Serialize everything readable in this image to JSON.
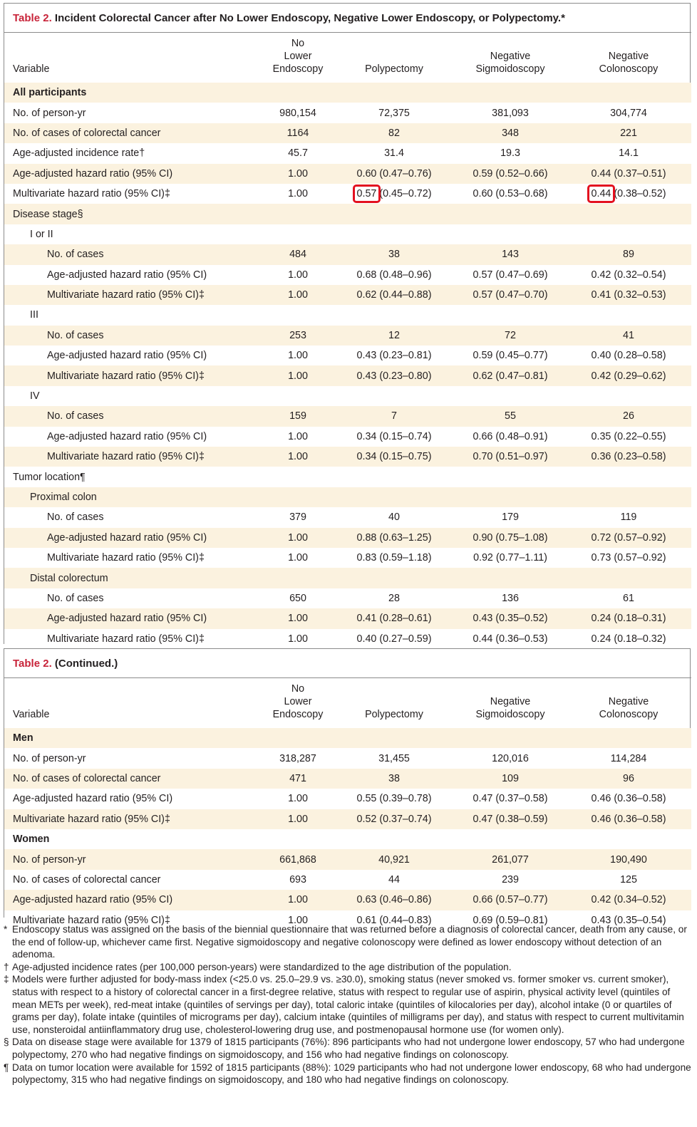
{
  "table1": {
    "label": "Table 2.",
    "title": "Incident Colorectal Cancer after No Lower Endoscopy, Negative Lower Endoscopy, or Polypectomy.*",
    "headers": [
      "Variable",
      "No Lower Endoscopy",
      "Polypectomy",
      "Negative Sigmoidoscopy",
      "Negative Colonoscopy"
    ],
    "rows": [
      {
        "kind": "sec",
        "label": "All participants",
        "cells": [
          "",
          "",
          "",
          ""
        ]
      },
      {
        "kind": "l0",
        "label": "No. of person-yr",
        "cells": [
          "980,154",
          "72,375",
          "381,093",
          "304,774"
        ]
      },
      {
        "kind": "l0",
        "label": "No. of cases of colorectal cancer",
        "cells": [
          "1164",
          "82",
          "348",
          "221"
        ]
      },
      {
        "kind": "l0",
        "label": "Age-adjusted incidence rate†",
        "cells": [
          "45.7",
          "31.4",
          "19.3",
          "14.1"
        ]
      },
      {
        "kind": "l0",
        "label": "Age-adjusted hazard ratio (95% CI)",
        "cells": [
          "1.00",
          "0.60 (0.47–0.76)",
          "0.59 (0.52–0.66)",
          "0.44 (0.37–0.51)"
        ]
      },
      {
        "kind": "hl",
        "label": "Multivariate hazard ratio (95% CI)‡",
        "c1": "1.00",
        "c2a": "0.57",
        "c2b": " (0.45–0.72)",
        "c3": "0.60 (0.53–0.68)",
        "c4a": "0.44",
        "c4b": " (0.38–0.52)"
      },
      {
        "kind": "l0",
        "label": "Disease stage§",
        "cells": [
          "",
          "",
          "",
          ""
        ]
      },
      {
        "kind": "l1",
        "label": "I or II",
        "cells": [
          "",
          "",
          "",
          ""
        ]
      },
      {
        "kind": "l2",
        "label": "No. of cases",
        "cells": [
          "484",
          "38",
          "143",
          "89"
        ]
      },
      {
        "kind": "l2",
        "label": "Age-adjusted hazard ratio (95% CI)",
        "cells": [
          "1.00",
          "0.68 (0.48–0.96)",
          "0.57 (0.47–0.69)",
          "0.42 (0.32–0.54)"
        ]
      },
      {
        "kind": "l2",
        "label": "Multivariate hazard ratio (95% CI)‡",
        "cells": [
          "1.00",
          "0.62 (0.44–0.88)",
          "0.57 (0.47–0.70)",
          "0.41 (0.32–0.53)"
        ]
      },
      {
        "kind": "l1",
        "label": "III",
        "cells": [
          "",
          "",
          "",
          ""
        ]
      },
      {
        "kind": "l2",
        "label": "No. of cases",
        "cells": [
          "253",
          "12",
          "72",
          "41"
        ]
      },
      {
        "kind": "l2",
        "label": "Age-adjusted hazard ratio (95% CI)",
        "cells": [
          "1.00",
          "0.43 (0.23–0.81)",
          "0.59 (0.45–0.77)",
          "0.40 (0.28–0.58)"
        ]
      },
      {
        "kind": "l2",
        "label": "Multivariate hazard ratio (95% CI)‡",
        "cells": [
          "1.00",
          "0.43 (0.23–0.80)",
          "0.62 (0.47–0.81)",
          "0.42 (0.29–0.62)"
        ]
      },
      {
        "kind": "l1",
        "label": "IV",
        "cells": [
          "",
          "",
          "",
          ""
        ]
      },
      {
        "kind": "l2",
        "label": "No. of cases",
        "cells": [
          "159",
          "7",
          "55",
          "26"
        ]
      },
      {
        "kind": "l2",
        "label": "Age-adjusted hazard ratio (95% CI)",
        "cells": [
          "1.00",
          "0.34 (0.15–0.74)",
          "0.66 (0.48–0.91)",
          "0.35 (0.22–0.55)"
        ]
      },
      {
        "kind": "l2",
        "label": "Multivariate hazard ratio (95% CI)‡",
        "cells": [
          "1.00",
          "0.34 (0.15–0.75)",
          "0.70 (0.51–0.97)",
          "0.36 (0.23–0.58)"
        ]
      },
      {
        "kind": "l0",
        "label": "Tumor location¶",
        "cells": [
          "",
          "",
          "",
          ""
        ]
      },
      {
        "kind": "l1",
        "label": "Proximal colon",
        "cells": [
          "",
          "",
          "",
          ""
        ]
      },
      {
        "kind": "l2",
        "label": "No. of cases",
        "cells": [
          "379",
          "40",
          "179",
          "119"
        ]
      },
      {
        "kind": "l2",
        "label": "Age-adjusted hazard ratio (95% CI)",
        "cells": [
          "1.00",
          "0.88 (0.63–1.25)",
          "0.90 (0.75–1.08)",
          "0.72 (0.57–0.92)"
        ]
      },
      {
        "kind": "l2",
        "label": "Multivariate hazard ratio (95% CI)‡",
        "cells": [
          "1.00",
          "0.83 (0.59–1.18)",
          "0.92 (0.77–1.11)",
          "0.73 (0.57–0.92)"
        ]
      },
      {
        "kind": "l1",
        "label": "Distal colorectum",
        "cells": [
          "",
          "",
          "",
          ""
        ]
      },
      {
        "kind": "l2",
        "label": "No. of cases",
        "cells": [
          "650",
          "28",
          "136",
          "61"
        ]
      },
      {
        "kind": "l2",
        "label": "Age-adjusted hazard ratio (95% CI)",
        "cells": [
          "1.00",
          "0.41 (0.28–0.61)",
          "0.43 (0.35–0.52)",
          "0.24 (0.18–0.31)"
        ]
      },
      {
        "kind": "l2",
        "label": "Multivariate hazard ratio (95% CI)‡",
        "cells": [
          "1.00",
          "0.40 (0.27–0.59)",
          "0.44 (0.36–0.53)",
          "0.24 (0.18–0.32)"
        ]
      }
    ]
  },
  "table2": {
    "label": "Table 2.",
    "title": "(Continued.)",
    "headers": [
      "Variable",
      "No Lower Endoscopy",
      "Polypectomy",
      "Negative Sigmoidoscopy",
      "Negative Colonoscopy"
    ],
    "rows": [
      {
        "kind": "sec",
        "label": "Men",
        "cells": [
          "",
          "",
          "",
          ""
        ]
      },
      {
        "kind": "l0",
        "label": "No. of person-yr",
        "cells": [
          "318,287",
          "31,455",
          "120,016",
          "114,284"
        ]
      },
      {
        "kind": "l0",
        "label": "No. of cases of colorectal cancer",
        "cells": [
          "471",
          "38",
          "109",
          "96"
        ]
      },
      {
        "kind": "l0",
        "label": "Age-adjusted hazard ratio (95% CI)",
        "cells": [
          "1.00",
          "0.55 (0.39–0.78)",
          "0.47 (0.37–0.58)",
          "0.46 (0.36–0.58)"
        ]
      },
      {
        "kind": "l0",
        "label": "Multivariate hazard ratio (95% CI)‡",
        "cells": [
          "1.00",
          "0.52 (0.37–0.74)",
          "0.47 (0.38–0.59)",
          "0.46 (0.36–0.58)"
        ]
      },
      {
        "kind": "sec",
        "label": "Women",
        "cells": [
          "",
          "",
          "",
          ""
        ]
      },
      {
        "kind": "l0",
        "label": "No. of person-yr",
        "cells": [
          "661,868",
          "40,921",
          "261,077",
          "190,490"
        ]
      },
      {
        "kind": "l0",
        "label": "No. of cases of colorectal cancer",
        "cells": [
          "693",
          "44",
          "239",
          "125"
        ]
      },
      {
        "kind": "l0",
        "label": "Age-adjusted hazard ratio (95% CI)",
        "cells": [
          "1.00",
          "0.63 (0.46–0.86)",
          "0.66 (0.57–0.77)",
          "0.42 (0.34–0.52)"
        ]
      },
      {
        "kind": "l0",
        "label": "Multivariate hazard ratio (95% CI)‡",
        "cells": [
          "1.00",
          "0.61 (0.44–0.83)",
          "0.69 (0.59–0.81)",
          "0.43 (0.35–0.54)"
        ]
      }
    ]
  },
  "footnotes": [
    {
      "sym": "*",
      "text": "Endoscopy status was assigned on the basis of the biennial questionnaire that was returned before a diagnosis of colorectal cancer, death from any cause, or the end of follow-up, whichever came first. Negative sigmoidoscopy and negative colonoscopy were defined as lower endoscopy without detection of an adenoma."
    },
    {
      "sym": "†",
      "text": "Age-adjusted incidence rates (per 100,000 person-years) were standardized to the age distribution of the population."
    },
    {
      "sym": "‡",
      "text": "Models were further adjusted for body-mass index (<25.0 vs. 25.0–29.9 vs. ≥30.0), smoking status (never smoked vs. former smoker vs. current smoker), status with respect to a history of colorectal cancer in a first-degree relative, status with respect to regular use of aspirin, physical activity level (quintiles of mean METs per week), red-meat intake (quintiles of servings per day), total caloric intake (quintiles of kilocalories per day), alcohol intake (0 or quartiles of grams per day), folate intake (quintiles of micrograms per day), calcium intake (quintiles of milligrams per day), and status with respect to current multivitamin use, nonsteroidal antiinflammatory drug use, cholesterol-lowering drug use, and postmenopausal hormone use (for women only)."
    },
    {
      "sym": "§",
      "text": "Data on disease stage were available for 1379 of 1815 participants (76%): 896 participants who had not undergone lower endoscopy, 57 who had undergone polypectomy, 270 who had negative findings on sigmoidoscopy, and 156 who had negative findings on colonoscopy."
    },
    {
      "sym": "¶",
      "text": "Data on tumor location were available for 1592 of 1815 participants (88%): 1029 participants who had not undergone lower endoscopy, 68 who had undergone polypectomy, 315 who had negative findings on sigmoidoscopy, and 180 who had negative findings on colonoscopy."
    }
  ],
  "highlight_color": "#e3101f",
  "label_color": "#c8243a",
  "stripe_color": "#fbf2df"
}
